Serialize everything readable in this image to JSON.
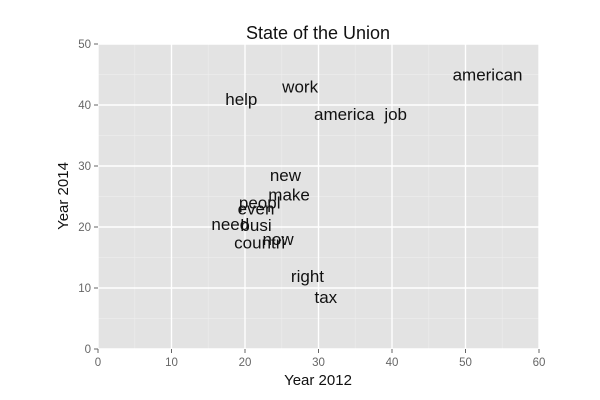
{
  "chart_data": {
    "type": "scatter",
    "title": "State of the Union",
    "xlabel": "Year 2012",
    "ylabel": "Year 2014",
    "xlim": [
      0,
      60
    ],
    "ylim": [
      0,
      50
    ],
    "xticks": [
      "0",
      "10",
      "20",
      "30",
      "40",
      "50",
      "60"
    ],
    "yticks": [
      "0",
      "10",
      "20",
      "30",
      "40",
      "50"
    ],
    "grid": true,
    "points": [
      {
        "label": "american",
        "x": 53,
        "y": 45
      },
      {
        "label": "work",
        "x": 27.5,
        "y": 43
      },
      {
        "label": "help",
        "x": 19.5,
        "y": 41
      },
      {
        "label": "america",
        "x": 33.5,
        "y": 38.5
      },
      {
        "label": "job",
        "x": 40.5,
        "y": 38.5
      },
      {
        "label": "new",
        "x": 25.5,
        "y": 28.5
      },
      {
        "label": "make",
        "x": 26,
        "y": 25.3
      },
      {
        "label": "peopl",
        "x": 22,
        "y": 24
      },
      {
        "label": "even",
        "x": 21.5,
        "y": 23
      },
      {
        "label": "need",
        "x": 18,
        "y": 20.5
      },
      {
        "label": "busi",
        "x": 21.5,
        "y": 20.3
      },
      {
        "label": "now",
        "x": 24.5,
        "y": 18
      },
      {
        "label": "countri",
        "x": 22,
        "y": 17.5
      },
      {
        "label": "right",
        "x": 28.5,
        "y": 12
      },
      {
        "label": "tax",
        "x": 31,
        "y": 8.5
      }
    ]
  },
  "colors": {
    "panel": "#e3e3e3",
    "grid_major": "#ffffff",
    "grid_minor": "#ececec",
    "text": "#111111",
    "tick": "#666666"
  }
}
